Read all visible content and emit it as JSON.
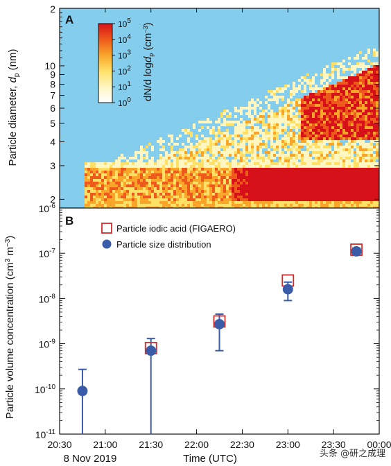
{
  "chart_data": [
    {
      "panel": "A",
      "type": "heatmap",
      "ylabel": "Particle diameter, d_p (nm)",
      "ylabel_parts": {
        "main": "Particle diameter, ",
        "var": "d",
        "sub": "p",
        "unit": " (nm)"
      },
      "yscale": "log",
      "ylim": [
        1.8,
        20
      ],
      "yticks_labeled": [
        2,
        3,
        4,
        5,
        6,
        7,
        8,
        9,
        10
      ],
      "ytick_top_label": "2",
      "xlim": [
        "20:30",
        "00:00"
      ],
      "colorbar": {
        "label": "dN/d logd_p (cm^-3)",
        "label_parts": {
          "main": "dN/d log",
          "var": "d",
          "sub": "p",
          "open": " (cm",
          "exp": "−3",
          "close": ")"
        },
        "scale": "log",
        "ticks": [
          {
            "base": "10",
            "exp": "5"
          },
          {
            "base": "10",
            "exp": "4"
          },
          {
            "base": "10",
            "exp": "3"
          },
          {
            "base": "10",
            "exp": "2"
          },
          {
            "base": "10",
            "exp": "1"
          },
          {
            "base": "10",
            "exp": "0"
          }
        ],
        "colors": [
          "#ffffff",
          "#fff6c2",
          "#ffe067",
          "#f8a52a",
          "#ee5a1c",
          "#d6111a"
        ]
      },
      "background_color": "#85cdec"
    },
    {
      "panel": "B",
      "type": "scatter",
      "xlabel": "Time (UTC)",
      "date_label": "8 Nov 2019",
      "ylabel": "Particle volume concentration (cm^3 m^-3)",
      "ylabel_parts": {
        "main": "Particle volume concentration (cm",
        "e1": "3",
        "mid": " m",
        "e2": "−3",
        "close": ")"
      },
      "yscale": "log",
      "ylim": [
        1e-11,
        1e-06
      ],
      "yticks": [
        {
          "value": 1e-11,
          "base": "10",
          "exp": "-11"
        },
        {
          "value": 1e-10,
          "base": "10",
          "exp": "-10"
        },
        {
          "value": 1e-09,
          "base": "10",
          "exp": "-9"
        },
        {
          "value": 1e-08,
          "base": "10",
          "exp": "-8"
        },
        {
          "value": 1e-07,
          "base": "10",
          "exp": "-7"
        },
        {
          "value": 1e-06,
          "base": "10",
          "exp": "-6"
        }
      ],
      "x_ticks": [
        "20:30",
        "21:00",
        "21:30",
        "22:00",
        "22:30",
        "23:00",
        "23:30",
        "00:00"
      ],
      "legend_position": "top-left",
      "series": [
        {
          "name": "Particle iodic acid (FIGAERO)",
          "marker": "open-square",
          "color": "#d42a2a",
          "points": [
            {
              "x": "21:30",
              "y": 8e-10
            },
            {
              "x": "22:15",
              "y": 3.1e-09
            },
            {
              "x": "23:00",
              "y": 2.5e-08
            },
            {
              "x": "23:45",
              "y": 1.2e-07
            }
          ]
        },
        {
          "name": "Particle size distribution",
          "marker": "filled-circle",
          "color": "#3a5ca8",
          "points": [
            {
              "x": "20:45",
              "y": 9e-11,
              "ylow": 1e-11,
              "yhigh": 2.7e-10
            },
            {
              "x": "21:30",
              "y": 7e-10,
              "ylow": 1e-11,
              "yhigh": 1.3e-09
            },
            {
              "x": "22:15",
              "y": 2.7e-09,
              "ylow": 7e-10,
              "yhigh": 4.5e-09
            },
            {
              "x": "23:00",
              "y": 1.6e-08,
              "ylow": 9e-09,
              "yhigh": 2.3e-08
            },
            {
              "x": "23:45",
              "y": 1.1e-07,
              "ylow": 9e-08,
              "yhigh": 1.3e-07
            }
          ]
        }
      ]
    }
  ],
  "watermark": "头条 @研之成理"
}
